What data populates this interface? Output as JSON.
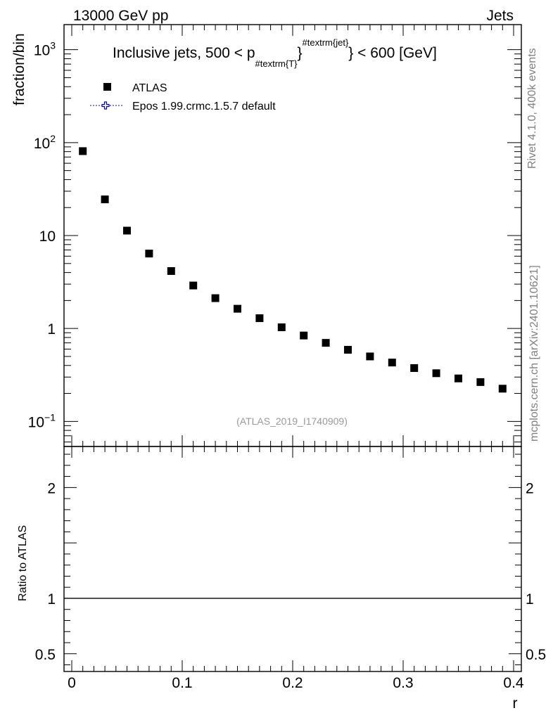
{
  "header": {
    "left": "13000 GeV pp",
    "right": "Jets"
  },
  "side_labels": {
    "rivet": "Rivet 4.1.0,  400k events",
    "mcplots": "mcplots.cern.ch [arXiv:2401.10621]"
  },
  "colors": {
    "data": "#000000",
    "mc": "#0000cc",
    "watermark": "#999999",
    "side_text": "#808080"
  },
  "chart_data": {
    "type": "scatter",
    "title_parts": {
      "main": "Inclusive jets, 500 < p",
      "sub": "#textrm{T}",
      "sup": "#textrm{jet}",
      "tail": "} < 600 [GeV]"
    },
    "watermark": "(ATLAS_2019_I1740909)",
    "ylabel": "fraction/bin",
    "ratio_ylabel": "Ratio to ATLAS",
    "xlabel": "r",
    "xlim": [
      -0.007,
      0.407
    ],
    "ylim_log": [
      -1.27,
      3.27
    ],
    "ratio_ylim": [
      0.34,
      2.37
    ],
    "legend": [
      {
        "name": "ATLAS",
        "marker": "filled-square"
      },
      {
        "name": "Epos 1.99.crmc.1.5.7 default",
        "marker": "open-cross"
      }
    ],
    "series": [
      {
        "name": "ATLAS",
        "x": [
          0.01,
          0.03,
          0.05,
          0.07,
          0.09,
          0.11,
          0.13,
          0.15,
          0.17,
          0.19,
          0.21,
          0.23,
          0.25,
          0.27,
          0.29,
          0.31,
          0.33,
          0.35,
          0.37,
          0.39
        ],
        "values": [
          81,
          24.5,
          11.3,
          6.4,
          4.15,
          2.9,
          2.12,
          1.63,
          1.29,
          1.03,
          0.84,
          0.7,
          0.59,
          0.5,
          0.43,
          0.375,
          0.33,
          0.29,
          0.265,
          0.225
        ]
      }
    ],
    "ratio_reference": 1,
    "x_ticks": [
      {
        "value": 0,
        "label": "0"
      },
      {
        "value": 0.1,
        "label": "0.1"
      },
      {
        "value": 0.2,
        "label": "0.2"
      },
      {
        "value": 0.3,
        "label": "0.3"
      },
      {
        "value": 0.4,
        "label": "0.4"
      }
    ],
    "y_ticks": [
      {
        "exp": 3,
        "label": "10",
        "sup": "3"
      },
      {
        "exp": 2,
        "label": "10",
        "sup": "2"
      },
      {
        "exp": 1,
        "label": "10",
        "sup": ""
      },
      {
        "exp": 0,
        "label": "1",
        "sup": ""
      },
      {
        "exp": -1,
        "label": "10",
        "sup": "−1"
      }
    ],
    "ratio_ticks": [
      {
        "value": 2,
        "label": "2"
      },
      {
        "value": 1,
        "label": "1"
      },
      {
        "value": 0.5,
        "label": "0.5"
      }
    ]
  }
}
